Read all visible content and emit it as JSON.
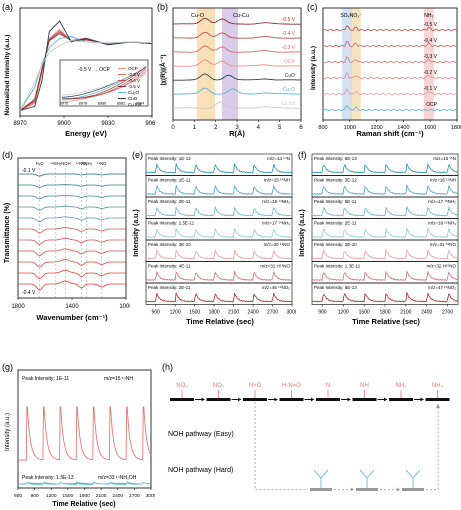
{
  "panels": {
    "a": {
      "letter": "(a)",
      "xlabel": "Energy (eV)",
      "ylabel": "Normalized Intensity (a.u.)",
      "xticks": [
        "8970",
        "9000",
        "9030",
        "9060"
      ],
      "inset_xticks": [
        "8976",
        "8978",
        "8980",
        "8982",
        "8984"
      ],
      "inset_label": "-0.5 V → OCP",
      "legend": [
        "OCP",
        "-0.3 V",
        "-0.4 V",
        "-0.5 V",
        "Cu₂O",
        "CuO",
        "Cu foil"
      ],
      "colors": [
        "#e88f8f",
        "#d36b6b",
        "#b85050",
        "#8e2e2e",
        "#5fb3c9",
        "#2d3b47",
        "#c7c7c7"
      ]
    },
    "b": {
      "letter": "(b)",
      "xlabel": "R(Å)",
      "ylabel": "|χ(R)|(Å⁻³)",
      "xticks": [
        "0",
        "1",
        "2",
        "3",
        "4",
        "5",
        "6"
      ],
      "annot_left": "Cu-O",
      "annot_right": "Cu-Cu",
      "labels": [
        "-0.5 V",
        "-0.4 V",
        "-0.3 V",
        "OCP",
        "CuO",
        "Cu₂O",
        "Cu foil"
      ],
      "colors": [
        "#8e2e2e",
        "#b85050",
        "#d36b6b",
        "#e88f8f",
        "#2d3b47",
        "#5fb3c9",
        "#c7c7c7"
      ]
    },
    "c": {
      "letter": "(c)",
      "xlabel": "Raman shift (cm⁻¹)",
      "ylabel": "Intensity (a.u.)",
      "xticks": [
        "800",
        "1000",
        "1200",
        "1400",
        "1600",
        "1800"
      ],
      "bands": [
        "SO₄²⁻",
        "NO₃⁻",
        "NH₃"
      ],
      "labels": [
        "-0.5 V",
        "-0.4 V",
        "-0.3 V",
        "-0.2 V",
        "-0.1 V",
        "OCP"
      ],
      "colors": [
        "#c44848",
        "#d06060",
        "#d97878",
        "#e08a8a",
        "#e89a9a",
        "#5fb3c9"
      ]
    },
    "d": {
      "letter": "(d)",
      "xlabel": "Wavenumber (cm⁻¹)",
      "ylabel": "Transmittance (%)",
      "xticks": [
        "1800",
        "1400",
        "1000"
      ],
      "top_label": "-0.1 V",
      "bottom_label": "-0.4 V",
      "band_labels": [
        "H₂O",
        "¹⁴NH₂",
        "-NOH",
        "¹⁴NO₂",
        "¹⁴NH₃",
        "¹⁴NO"
      ]
    },
    "e": {
      "letter": "(e)",
      "xlabel": "Time Relative (sec)",
      "ylabel": "Intensity (a.u.)",
      "xticks": [
        "900",
        "1200",
        "1500",
        "1800",
        "2100",
        "2400",
        "2700",
        "3000"
      ],
      "rows": [
        {
          "peak": "Peak Intensity: 1E-12",
          "mz": "m/z=14 ¹⁴N",
          "color": "#2f8fb0"
        },
        {
          "peak": "Peak Intensity: 1E-11",
          "mz": "m/z=15 ¹⁴NH",
          "color": "#4aa3c0"
        },
        {
          "peak": "Peak Intensity: 2E-11",
          "mz": "m/z=16 ¹⁴NH₂",
          "color": "#6ab5cc"
        },
        {
          "peak": "Peak Intensity: 2.5E-11",
          "mz": "m/z=17 ¹⁴NH₃",
          "color": "#92c9d8"
        },
        {
          "peak": "Peak Intensity: 3E-10",
          "mz": "m/z=30 ¹⁴NO",
          "color": "#e0a0a0"
        },
        {
          "peak": "Peak Intensity: 4E-11",
          "mz": "m/z=31 H¹⁴NO",
          "color": "#cc7272"
        },
        {
          "peak": "Peak Intensity: 2E-11",
          "mz": "m/z=46 ¹⁴NO₂",
          "color": "#9c3030"
        }
      ]
    },
    "f": {
      "letter": "(f)",
      "xlabel": "Time Relative (sec)",
      "ylabel": "Intensity (a.u.)",
      "xticks": [
        "900",
        "1200",
        "1500",
        "1800",
        "2100",
        "2400",
        "2700"
      ],
      "rows": [
        {
          "peak": "Peak Intensity: 6E-13",
          "mz": "m/z=15 ¹⁵N",
          "color": "#2f8fb0"
        },
        {
          "peak": "Peak Intensity: 3E-12",
          "mz": "m/z=16 ¹⁵NH",
          "color": "#4aa3c0"
        },
        {
          "peak": "Peak Intensity: 5E-11",
          "mz": "m/z=17 ¹⁵NH₂",
          "color": "#6ab5cc"
        },
        {
          "peak": "Peak Intensity: 2E-11",
          "mz": "m/z=18 ¹⁵NH₃",
          "color": "#92c9d8"
        },
        {
          "peak": "Peak Intensity: 2E-10",
          "mz": "m/z=31 ¹⁵NO",
          "color": "#e0a0a0"
        },
        {
          "peak": "Peak Intensity: 1.3E-11",
          "mz": "m/z=32 H¹⁵NO",
          "color": "#cc7272"
        },
        {
          "peak": "Peak Intensity: 5E-13",
          "mz": "m/z=47 ¹⁵NO₂",
          "color": "#9c3030"
        }
      ]
    },
    "g": {
      "letter": "(g)",
      "xlabel": "Time Relative (sec)",
      "ylabel": "Intensity (a.u.)",
      "xticks": [
        "600",
        "900",
        "1200",
        "1500",
        "1800",
        "2100",
        "2400",
        "2700",
        "3000"
      ],
      "top_peak": "Peak Intensity: 1E-11",
      "top_mz": "m/z=15 ¹⁴NH",
      "bottom_peak": "Peak Intensity: 1.5E-13",
      "bottom_mz": "m/z=33 ¹⁴NH₂OH",
      "top_color": "#e07a7a",
      "bottom_color": "#5fb3c9"
    },
    "h": {
      "letter": "(h)",
      "top_species": [
        "NO₃",
        "NO₂",
        "N=O",
        "H-N=O",
        "N",
        "NH",
        "NH₂",
        "NH₃"
      ],
      "easy_label": "NOH pathway (Easy)",
      "hard_label": "NOH pathway (Hard)",
      "easy_color": "#e07a7a",
      "hard_color": "#5fb3c9"
    }
  },
  "chart_data": [
    {
      "type": "line",
      "panel": "a",
      "xlabel": "Energy (eV)",
      "ylabel": "Normalized Intensity (a.u.)",
      "xlim": [
        8970,
        9060
      ],
      "series": [
        {
          "name": "OCP",
          "x": [
            8970,
            8980,
            8985,
            8990,
            8997,
            9005,
            9015,
            9030,
            9045,
            9060
          ],
          "y": [
            0.02,
            0.12,
            0.55,
            1.05,
            1.18,
            1.02,
            1.06,
            0.96,
            1.0,
            0.98
          ]
        },
        {
          "name": "-0.3 V",
          "x": [
            8970,
            8980,
            8985,
            8990,
            8997,
            9005,
            9015,
            9030,
            9045,
            9060
          ],
          "y": [
            0.02,
            0.14,
            0.57,
            1.04,
            1.16,
            1.02,
            1.05,
            0.97,
            1.0,
            0.98
          ]
        },
        {
          "name": "-0.4 V",
          "x": [
            8970,
            8980,
            8985,
            8990,
            8997,
            9005,
            9015,
            9030,
            9045,
            9060
          ],
          "y": [
            0.02,
            0.16,
            0.6,
            1.03,
            1.14,
            1.02,
            1.04,
            0.97,
            1.0,
            0.98
          ]
        },
        {
          "name": "-0.5 V",
          "x": [
            8970,
            8980,
            8985,
            8990,
            8997,
            9005,
            9015,
            9030,
            9045,
            9060
          ],
          "y": [
            0.02,
            0.18,
            0.62,
            1.02,
            1.12,
            1.02,
            1.03,
            0.98,
            1.0,
            0.98
          ]
        },
        {
          "name": "Cu₂O",
          "x": [
            8970,
            8980,
            8985,
            8990,
            8997,
            9005,
            9015,
            9030,
            9045,
            9060
          ],
          "y": [
            0.02,
            0.35,
            0.7,
            0.92,
            1.05,
            1.08,
            1.0,
            0.98,
            1.0,
            0.99
          ]
        },
        {
          "name": "CuO",
          "x": [
            8970,
            8980,
            8985,
            8990,
            8997,
            9005,
            9015,
            9030,
            9045,
            9060
          ],
          "y": [
            0.02,
            0.08,
            0.45,
            1.15,
            1.3,
            1.0,
            1.05,
            0.96,
            1.0,
            0.98
          ]
        },
        {
          "name": "Cu foil",
          "x": [
            8970,
            8980,
            8985,
            8990,
            8997,
            9005,
            9015,
            9030,
            9045,
            9060
          ],
          "y": [
            0.02,
            0.42,
            0.68,
            0.85,
            0.95,
            1.02,
            1.0,
            0.99,
            1.0,
            0.99
          ]
        }
      ]
    },
    {
      "type": "line",
      "panel": "b",
      "xlabel": "R(Å)",
      "ylabel": "|χ(R)|(Å⁻³)",
      "xlim": [
        0,
        6
      ],
      "series": [
        {
          "name": "-0.5 V",
          "peaks_R": [
            1.5,
            2.3
          ]
        },
        {
          "name": "-0.4 V",
          "peaks_R": [
            1.5,
            2.3
          ]
        },
        {
          "name": "-0.3 V",
          "peaks_R": [
            1.5,
            2.3
          ]
        },
        {
          "name": "OCP",
          "peaks_R": [
            1.5,
            2.3
          ]
        },
        {
          "name": "CuO",
          "peaks_R": [
            1.5,
            2.6
          ]
        },
        {
          "name": "Cu₂O",
          "peaks_R": [
            1.5,
            2.8
          ]
        },
        {
          "name": "Cu foil",
          "peaks_R": [
            2.2
          ]
        }
      ]
    },
    {
      "type": "line",
      "panel": "c",
      "xlabel": "Raman shift (cm⁻¹)",
      "ylabel": "Intensity (a.u.)",
      "xlim": [
        800,
        1800
      ],
      "band_positions": {
        "SO₄²⁻": 980,
        "NO₃⁻": 1045,
        "NH₃": 1590
      }
    },
    {
      "type": "line",
      "panel": "d",
      "xlabel": "Wavenumber (cm⁻¹)",
      "ylabel": "Transmittance (%)",
      "xlim": [
        1800,
        1000
      ]
    },
    {
      "type": "line",
      "panel": "e",
      "xlabel": "Time Relative (sec)",
      "xlim": [
        750,
        3000
      ],
      "peak_times": [
        900,
        1200,
        1500,
        1800,
        2100,
        2400,
        2700
      ]
    },
    {
      "type": "line",
      "panel": "f",
      "xlabel": "Time Relative (sec)",
      "xlim": [
        750,
        2850
      ],
      "peak_times": [
        900,
        1200,
        1500,
        1800,
        2100,
        2400,
        2700
      ]
    },
    {
      "type": "line",
      "panel": "g",
      "xlabel": "Time Relative (sec)",
      "xlim": [
        600,
        3000
      ],
      "peak_times": [
        750,
        1050,
        1350,
        1650,
        1950,
        2250,
        2550,
        2850
      ]
    }
  ]
}
